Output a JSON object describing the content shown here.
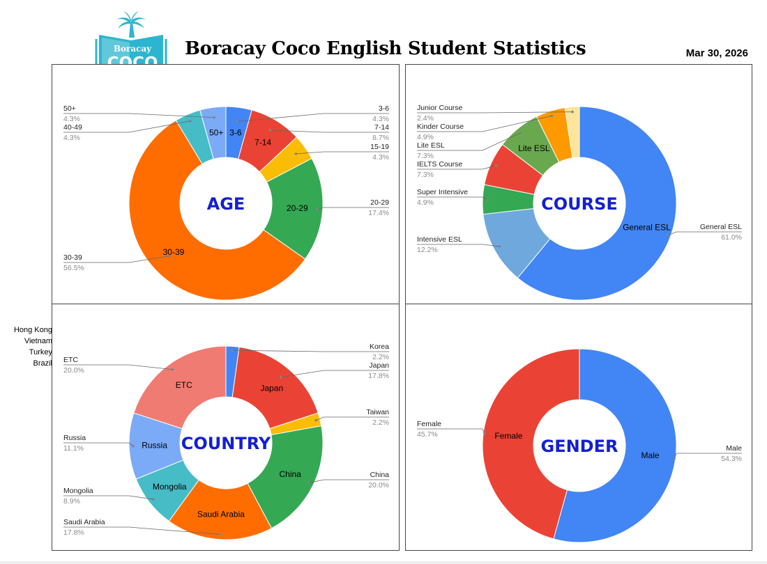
{
  "header": {
    "title": "Boracay Coco English Student Statistics",
    "date": "Mar 30, 2026",
    "logo_top": "Boracay",
    "logo_main": "COCO"
  },
  "colors": {
    "blue": "#4285F4",
    "red": "#EA4335",
    "yellow": "#FBBC04",
    "green": "#34A853",
    "orange": "#FF6D01",
    "teal": "#46BDC6",
    "lightblue": "#7BAAF7",
    "midblue": "#6FA8DC",
    "lightgreen": "#6AA84F",
    "pale": "#FFE599",
    "salmon": "#F07B72",
    "center_text": "#1320D0",
    "logo": "#2CB5CF"
  },
  "side_list": [
    "Hong Kong",
    "Vietnam",
    "Turkey",
    "Brazil"
  ],
  "chart_data": [
    {
      "type": "pie",
      "center_label": "AGE",
      "slices": [
        {
          "label": "3-6",
          "value": 4.3,
          "pct": "4.3%",
          "color": "#4285F4",
          "inner": true
        },
        {
          "label": "7-14",
          "value": 8.7,
          "pct": "8.7%",
          "color": "#EA4335",
          "inner": true
        },
        {
          "label": "15-19",
          "value": 4.3,
          "pct": "4.3%",
          "color": "#FBBC04",
          "inner": false
        },
        {
          "label": "20-29",
          "value": 17.4,
          "pct": "17.4%",
          "color": "#34A853",
          "inner": true
        },
        {
          "label": "30-39",
          "value": 56.5,
          "pct": "56.5%",
          "color": "#FF6D01",
          "inner": true
        },
        {
          "label": "40-49",
          "value": 4.3,
          "pct": "4.3%",
          "color": "#46BDC6",
          "inner": false
        },
        {
          "label": "50+",
          "value": 4.3,
          "pct": "4.3%",
          "color": "#7BAAF7",
          "inner": true
        }
      ]
    },
    {
      "type": "pie",
      "center_label": "COURSE",
      "slices": [
        {
          "label": "General ESL",
          "value": 61.0,
          "pct": "61.0%",
          "color": "#4285F4",
          "inner": true
        },
        {
          "label": "Intensive ESL",
          "value": 12.2,
          "pct": "12.2%",
          "color": "#6FA8DC",
          "inner": false
        },
        {
          "label": "Super Intensive",
          "value": 4.9,
          "pct": "4.9%",
          "color": "#34A853",
          "inner": false
        },
        {
          "label": "IELTS Course",
          "value": 7.3,
          "pct": "7.3%",
          "color": "#EA4335",
          "inner": false
        },
        {
          "label": "Lite ESL",
          "value": 7.3,
          "pct": "7.3%",
          "color": "#6AA84F",
          "inner": true
        },
        {
          "label": "Kinder Course",
          "value": 4.9,
          "pct": "4.9%",
          "color": "#FF9900",
          "inner": false
        },
        {
          "label": "Junior Course",
          "value": 2.4,
          "pct": "2.4%",
          "color": "#FFE599",
          "inner": false
        }
      ]
    },
    {
      "type": "pie",
      "center_label": "COUNTRY",
      "slices": [
        {
          "label": "Korea",
          "value": 2.2,
          "pct": "2.2%",
          "color": "#4285F4",
          "inner": false
        },
        {
          "label": "Japan",
          "value": 17.8,
          "pct": "17.8%",
          "color": "#EA4335",
          "inner": true
        },
        {
          "label": "Taiwan",
          "value": 2.2,
          "pct": "2.2%",
          "color": "#FBBC04",
          "inner": false
        },
        {
          "label": "China",
          "value": 20.0,
          "pct": "20.0%",
          "color": "#34A853",
          "inner": true
        },
        {
          "label": "Saudi Arabia",
          "value": 17.8,
          "pct": "17.8%",
          "color": "#FF6D01",
          "inner": true
        },
        {
          "label": "Mongolia",
          "value": 8.9,
          "pct": "8.9%",
          "color": "#46BDC6",
          "inner": true
        },
        {
          "label": "Russia",
          "value": 11.1,
          "pct": "11.1%",
          "color": "#7BAAF7",
          "inner": true
        },
        {
          "label": "ETC",
          "value": 20.0,
          "pct": "20.0%",
          "color": "#F07B72",
          "inner": true
        }
      ]
    },
    {
      "type": "pie",
      "center_label": "GENDER",
      "slices": [
        {
          "label": "Male",
          "value": 54.3,
          "pct": "54.3%",
          "color": "#4285F4",
          "inner": true
        },
        {
          "label": "Female",
          "value": 45.7,
          "pct": "45.7%",
          "color": "#EA4335",
          "inner": true
        }
      ]
    }
  ]
}
